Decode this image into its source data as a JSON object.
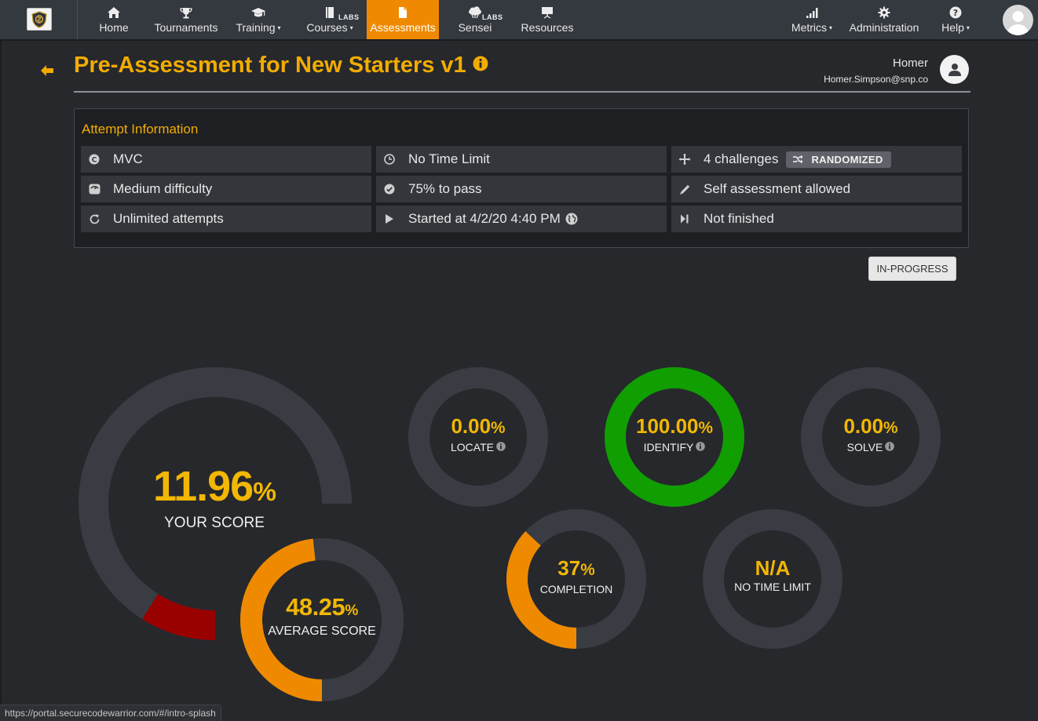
{
  "nav": {
    "items": [
      {
        "label": "Home",
        "icon": "home-icon"
      },
      {
        "label": "Tournaments",
        "icon": "trophy-icon"
      },
      {
        "label": "Training",
        "icon": "graduation-cap-icon",
        "dropdown": true
      },
      {
        "label": "Courses",
        "icon": "book-icon",
        "dropdown": true,
        "tag": "LABS"
      },
      {
        "label": "Assessments",
        "icon": "document-icon",
        "active": true
      },
      {
        "label": "Sensei",
        "icon": "cloud-icon",
        "tag": "LABS"
      },
      {
        "label": "Resources",
        "icon": "presentation-icon"
      }
    ],
    "right_items": [
      {
        "label": "Metrics",
        "icon": "bar-chart-icon",
        "dropdown": true
      },
      {
        "label": "Administration",
        "icon": "gear-icon"
      },
      {
        "label": "Help",
        "icon": "question-icon",
        "dropdown": true
      }
    ],
    "caret": "▾",
    "labs": "LABS"
  },
  "header": {
    "title": "Pre-Assessment for New Starters v1",
    "user_name": "Homer",
    "user_email": "Homer.Simpson@snp.co"
  },
  "attempt": {
    "title": "Attempt Information",
    "cells": [
      {
        "icon": "language-icon",
        "text": "MVC"
      },
      {
        "icon": "clock-icon",
        "text": "No Time Limit"
      },
      {
        "icon": "crosshair-icon",
        "text": "4 challenges",
        "badge": "RANDOMIZED"
      },
      {
        "icon": "difficulty-icon",
        "text": "Medium difficulty"
      },
      {
        "icon": "check-circle-icon",
        "text": "75% to pass"
      },
      {
        "icon": "pencil-icon",
        "text": "Self assessment allowed"
      },
      {
        "icon": "refresh-icon",
        "text": "Unlimited attempts"
      },
      {
        "icon": "play-icon",
        "text": "Started at 4/2/20 4:40 PM"
      },
      {
        "icon": "step-forward-icon",
        "text": "Not finished"
      }
    ]
  },
  "status_label": "IN-PROGRESS",
  "gauges": {
    "your_score": {
      "value": "11.96",
      "unit": "%",
      "label": "YOUR SCORE",
      "fraction": 0.1196
    },
    "average_score": {
      "value": "48.25",
      "unit": "%",
      "label": "AVERAGE SCORE",
      "fraction": 0.4825
    },
    "locate": {
      "value": "0.00",
      "unit": "%",
      "label": "LOCATE",
      "fraction": 0
    },
    "identify": {
      "value": "100.00",
      "unit": "%",
      "label": "IDENTIFY",
      "fraction": 1.0
    },
    "solve": {
      "value": "0.00",
      "unit": "%",
      "label": "SOLVE",
      "fraction": 0
    },
    "completion": {
      "value": "37",
      "unit": "%",
      "label": "COMPLETION",
      "fraction": 0.37
    },
    "time": {
      "value": "N/A",
      "unit": "",
      "label": "NO TIME LIMIT",
      "fraction": 0
    }
  },
  "colors": {
    "accent": "#f2ac00",
    "nav_active": "#ef8a00",
    "gauge_track": "#393c42",
    "your_score_fill": "#990000",
    "average_fill": "#ef8a00",
    "identify_fill": "#109e00",
    "completion_fill": "#ef8a00",
    "value_text": "#f2b705"
  },
  "status_bar_url": "https://portal.securecodewarrior.com/#/intro-splash"
}
